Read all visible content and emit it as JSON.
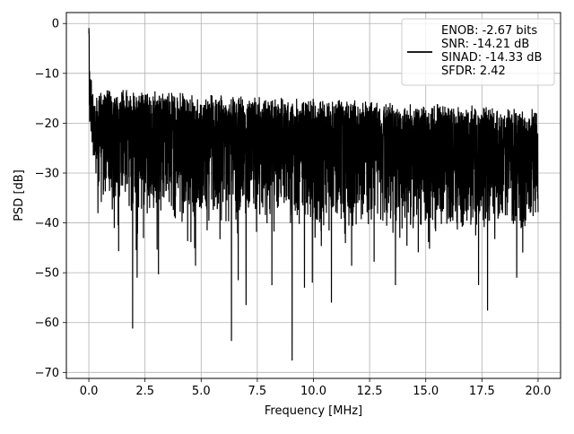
{
  "chart_data": {
    "type": "line",
    "title": "",
    "xlabel": "Frequency [MHz]",
    "ylabel": "PSD [dB]",
    "xlim": [
      -1.0,
      21.0
    ],
    "ylim": [
      -71.2,
      2.2
    ],
    "x_ticks": [
      0.0,
      2.5,
      5.0,
      7.5,
      10.0,
      12.5,
      15.0,
      17.5,
      20.0
    ],
    "x_tick_labels": [
      "0.0",
      "2.5",
      "5.0",
      "7.5",
      "10.0",
      "12.5",
      "15.0",
      "17.5",
      "20.0"
    ],
    "y_ticks": [
      0,
      -10,
      -20,
      -30,
      -40,
      -50,
      -60,
      -70
    ],
    "y_tick_labels": [
      "0",
      "−10",
      "−20",
      "−30",
      "−40",
      "−50",
      "−60",
      "−70"
    ],
    "grid": true,
    "line_color": "#000000",
    "legend_position": "upper right",
    "legend": [
      "ENOB: -2.67 bits",
      "SNR: -14.21 dB",
      "SINAD: -14.33 dB",
      "SFDR: 2.42"
    ],
    "series_summary": {
      "x_range": [
        0.0,
        20.0
      ],
      "peak": {
        "x": 0.0,
        "y": 0.0
      },
      "noise_floor_band_db": [
        -35,
        -17
      ],
      "notable_minima": [
        {
          "x": 1.95,
          "y": -61.2
        },
        {
          "x": 2.15,
          "y": -51.0
        },
        {
          "x": 3.1,
          "y": -50.3
        },
        {
          "x": 4.75,
          "y": -48.6
        },
        {
          "x": 6.35,
          "y": -63.7
        },
        {
          "x": 6.65,
          "y": -51.5
        },
        {
          "x": 7.0,
          "y": -56.5
        },
        {
          "x": 8.15,
          "y": -52.5
        },
        {
          "x": 9.05,
          "y": -67.6
        },
        {
          "x": 9.6,
          "y": -53.0
        },
        {
          "x": 9.95,
          "y": -52.0
        },
        {
          "x": 10.8,
          "y": -56.0
        },
        {
          "x": 11.7,
          "y": -48.6
        },
        {
          "x": 12.7,
          "y": -47.8
        },
        {
          "x": 13.65,
          "y": -52.5
        },
        {
          "x": 17.75,
          "y": -57.6
        },
        {
          "x": 17.35,
          "y": -52.5
        },
        {
          "x": 19.05,
          "y": -51.0
        }
      ]
    }
  }
}
